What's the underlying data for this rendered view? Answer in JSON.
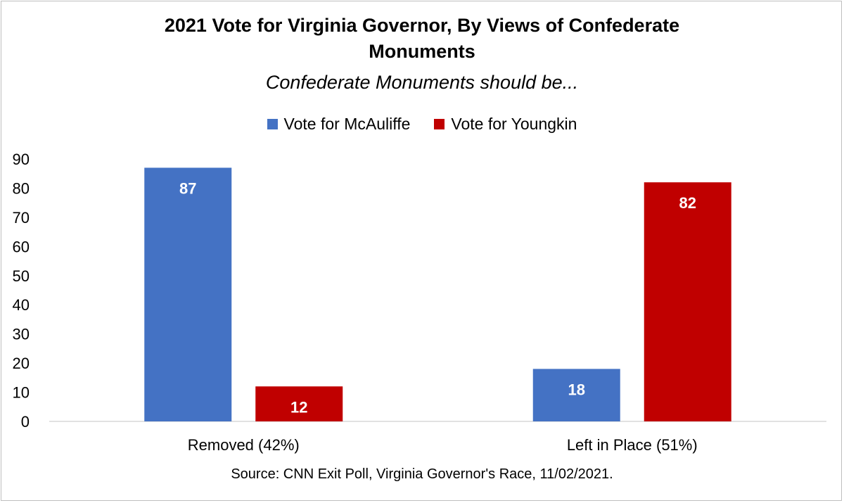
{
  "chart_data": {
    "type": "bar",
    "title": "2021 Vote for Virginia Governor, By Views of Confederate Monuments",
    "title_lines": [
      "2021 Vote for Virginia Governor, By Views of Confederate",
      "Monuments"
    ],
    "subtitle": "Confederate Monuments should be...",
    "categories": [
      "Removed (42%)",
      "Left in Place (51%)"
    ],
    "series": [
      {
        "name": "Vote for McAuliffe",
        "values": [
          87,
          18
        ],
        "color": "#4472c4"
      },
      {
        "name": "Vote for Youngkin",
        "values": [
          12,
          82
        ],
        "color": "#c00000"
      }
    ],
    "ylim": [
      0,
      90
    ],
    "yticks": [
      0,
      10,
      20,
      30,
      40,
      50,
      60,
      70,
      80,
      90
    ],
    "grid": false,
    "legend_position": "top",
    "source": "Source: CNN Exit Poll, Virginia Governor's Race, 11/02/2021."
  }
}
